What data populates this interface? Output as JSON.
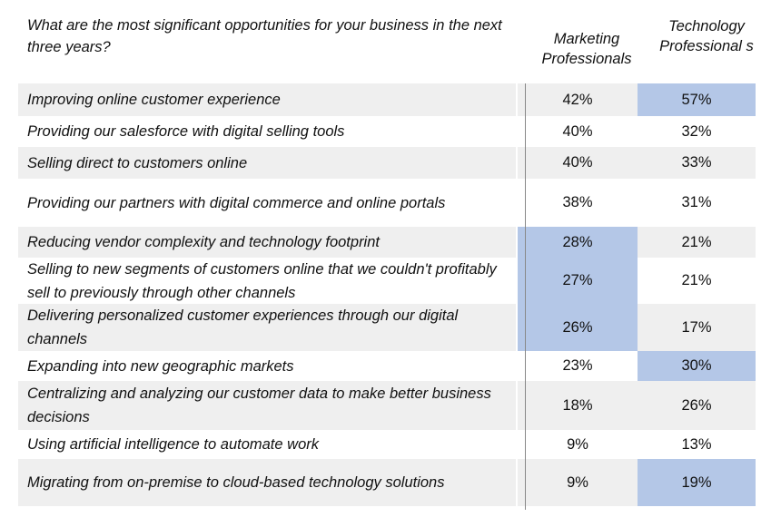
{
  "header": {
    "question": "What are the most significant opportunities for your business in the next three years?",
    "col_marketing": "Marketing Professionals",
    "col_technology": "Technology Professional s"
  },
  "highlight_color": "#b4c7e7",
  "rows": [
    {
      "label": "Improving online customer experience",
      "marketing": "42%",
      "technology": "57%",
      "hl_m": false,
      "hl_t": true
    },
    {
      "label": "Providing our salesforce with digital selling tools",
      "marketing": "40%",
      "technology": "32%",
      "hl_m": false,
      "hl_t": false
    },
    {
      "label": "Selling direct to customers online",
      "marketing": "40%",
      "technology": "33%",
      "hl_m": false,
      "hl_t": false
    },
    {
      "label": "Providing our partners with digital commerce and online portals",
      "marketing": "38%",
      "technology": "31%",
      "hl_m": false,
      "hl_t": false
    },
    {
      "label": "Reducing vendor complexity and technology footprint",
      "marketing": "28%",
      "technology": "21%",
      "hl_m": true,
      "hl_t": false
    },
    {
      "label": "Selling to new segments of customers online that we couldn't profitably sell to previously through other channels",
      "marketing": "27%",
      "technology": "21%",
      "hl_m": true,
      "hl_t": false
    },
    {
      "label": "Delivering personalized customer experiences through our digital channels",
      "marketing": "26%",
      "technology": "17%",
      "hl_m": true,
      "hl_t": false
    },
    {
      "label": "Expanding into new geographic markets",
      "marketing": "23%",
      "technology": "30%",
      "hl_m": false,
      "hl_t": true
    },
    {
      "label": "Centralizing and analyzing our customer data to make better business decisions",
      "marketing": "18%",
      "technology": "26%",
      "hl_m": false,
      "hl_t": false
    },
    {
      "label": "Using artificial intelligence to automate work",
      "marketing": "9%",
      "technology": "13%",
      "hl_m": false,
      "hl_t": false
    },
    {
      "label": "Migrating from on-premise to cloud-based technology solutions",
      "marketing": "9%",
      "technology": "19%",
      "hl_m": false,
      "hl_t": true
    }
  ]
}
